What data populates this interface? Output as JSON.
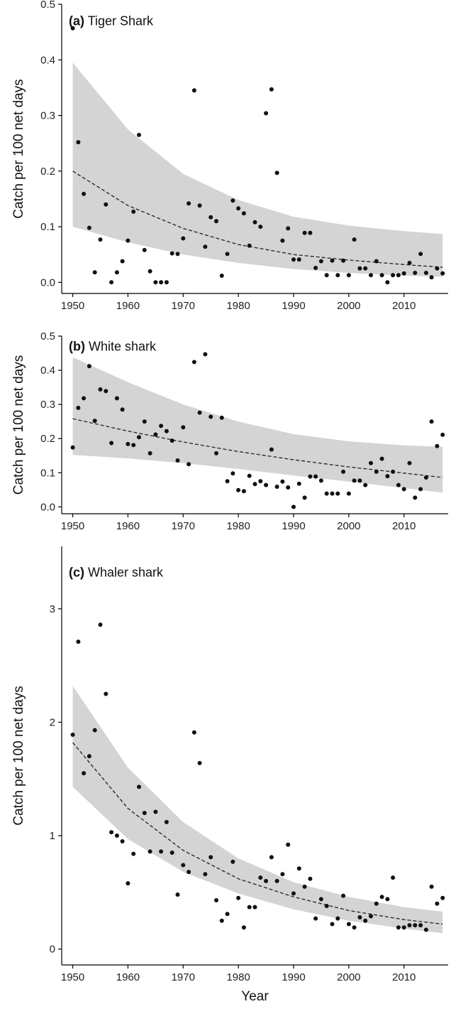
{
  "chart_data": [
    {
      "type": "scatter",
      "panel_letter": "(a)",
      "title": "Tiger Shark",
      "ylabel": "Catch per 100 net days",
      "xlabel": "",
      "xlim": [
        1948,
        2018
      ],
      "ylim": [
        -0.02,
        0.5
      ],
      "xticks": [
        1950,
        1960,
        1970,
        1980,
        1990,
        2000,
        2010
      ],
      "yticks": [
        0.0,
        0.1,
        0.2,
        0.3,
        0.4,
        0.5
      ],
      "ytick_labels": [
        "0.0",
        "0.1",
        "0.2",
        "0.3",
        "0.4",
        "0.5"
      ],
      "grid": false,
      "trend": {
        "x": [
          1950,
          1960,
          1970,
          1980,
          1990,
          2000,
          2010,
          2017
        ],
        "y": [
          0.2,
          0.138,
          0.097,
          0.068,
          0.05,
          0.04,
          0.032,
          0.027
        ]
      },
      "ribbon_upper": {
        "x": [
          1950,
          1960,
          1970,
          1980,
          1990,
          2000,
          2010,
          2017
        ],
        "y": [
          0.395,
          0.275,
          0.195,
          0.148,
          0.118,
          0.102,
          0.092,
          0.087
        ]
      },
      "ribbon_lower": {
        "x": [
          1950,
          1960,
          1970,
          1980,
          1990,
          2000,
          2010,
          2017
        ],
        "y": [
          0.1,
          0.072,
          0.05,
          0.035,
          0.024,
          0.017,
          0.012,
          0.01
        ]
      },
      "points": {
        "x": [
          1950,
          1951,
          1952,
          1953,
          1954,
          1955,
          1956,
          1957,
          1958,
          1959,
          1960,
          1961,
          1962,
          1963,
          1964,
          1965,
          1966,
          1967,
          1968,
          1969,
          1970,
          1971,
          1972,
          1973,
          1974,
          1975,
          1976,
          1977,
          1978,
          1979,
          1980,
          1981,
          1982,
          1983,
          1984,
          1985,
          1986,
          1987,
          1988,
          1989,
          1990,
          1991,
          1992,
          1993,
          1994,
          1995,
          1996,
          1997,
          1998,
          1999,
          2000,
          2001,
          2002,
          2003,
          2004,
          2005,
          2006,
          2007,
          2008,
          2009,
          2010,
          2011,
          2012,
          2013,
          2014,
          2015,
          2016,
          2017
        ],
        "y": [
          0.457,
          0.252,
          0.159,
          0.098,
          0.018,
          0.077,
          0.14,
          0.0,
          0.018,
          0.038,
          0.075,
          0.127,
          0.265,
          0.058,
          0.02,
          0.0,
          0.0,
          0.0,
          0.052,
          0.051,
          0.079,
          0.142,
          0.345,
          0.138,
          0.064,
          0.117,
          0.11,
          0.012,
          0.051,
          0.147,
          0.133,
          0.124,
          0.066,
          0.108,
          0.1,
          0.304,
          0.347,
          0.197,
          0.075,
          0.097,
          0.041,
          0.041,
          0.089,
          0.089,
          0.026,
          0.038,
          0.013,
          0.039,
          0.013,
          0.039,
          0.013,
          0.077,
          0.025,
          0.025,
          0.013,
          0.038,
          0.013,
          0.0,
          0.013,
          0.013,
          0.016,
          0.035,
          0.017,
          0.051,
          0.017,
          0.009,
          0.025,
          0.016
        ]
      }
    },
    {
      "type": "scatter",
      "panel_letter": "(b)",
      "title": "White shark",
      "ylabel": "Catch per 100 net days",
      "xlabel": "",
      "xlim": [
        1948,
        2018
      ],
      "ylim": [
        -0.02,
        0.5
      ],
      "xticks": [
        1950,
        1960,
        1970,
        1980,
        1990,
        2000,
        2010
      ],
      "yticks": [
        0.0,
        0.1,
        0.2,
        0.3,
        0.4,
        0.5
      ],
      "ytick_labels": [
        "0.0",
        "0.1",
        "0.2",
        "0.3",
        "0.4",
        "0.5"
      ],
      "grid": false,
      "trend": {
        "x": [
          1950,
          1960,
          1970,
          1980,
          1990,
          2000,
          2010,
          2017
        ],
        "y": [
          0.258,
          0.222,
          0.19,
          0.162,
          0.138,
          0.117,
          0.099,
          0.086
        ]
      },
      "ribbon_upper": {
        "x": [
          1950,
          1960,
          1970,
          1980,
          1990,
          2000,
          2010,
          2017
        ],
        "y": [
          0.438,
          0.365,
          0.3,
          0.25,
          0.213,
          0.192,
          0.18,
          0.176
        ]
      },
      "ribbon_lower": {
        "x": [
          1950,
          1960,
          1970,
          1980,
          1990,
          2000,
          2010,
          2017
        ],
        "y": [
          0.152,
          0.142,
          0.128,
          0.111,
          0.092,
          0.074,
          0.055,
          0.042
        ]
      },
      "points": {
        "x": [
          1950,
          1951,
          1952,
          1953,
          1954,
          1955,
          1956,
          1957,
          1958,
          1959,
          1960,
          1961,
          1962,
          1963,
          1964,
          1965,
          1966,
          1967,
          1968,
          1969,
          1970,
          1971,
          1972,
          1973,
          1974,
          1975,
          1976,
          1977,
          1978,
          1979,
          1980,
          1981,
          1982,
          1983,
          1984,
          1985,
          1986,
          1987,
          1988,
          1989,
          1990,
          1991,
          1992,
          1993,
          1994,
          1995,
          1996,
          1997,
          1998,
          1999,
          2000,
          2001,
          2002,
          2003,
          2004,
          2005,
          2006,
          2007,
          2008,
          2009,
          2010,
          2011,
          2012,
          2013,
          2014,
          2015,
          2016,
          2017
        ],
        "y": [
          0.174,
          0.29,
          0.318,
          0.412,
          0.252,
          0.344,
          0.339,
          0.187,
          0.318,
          0.285,
          0.184,
          0.181,
          0.204,
          0.25,
          0.157,
          0.212,
          0.237,
          0.222,
          0.194,
          0.136,
          0.233,
          0.125,
          0.424,
          0.276,
          0.447,
          0.264,
          0.157,
          0.261,
          0.075,
          0.098,
          0.049,
          0.046,
          0.091,
          0.067,
          0.075,
          0.064,
          0.168,
          0.059,
          0.074,
          0.057,
          0.0,
          0.068,
          0.027,
          0.089,
          0.089,
          0.077,
          0.039,
          0.039,
          0.039,
          0.103,
          0.039,
          0.077,
          0.077,
          0.064,
          0.128,
          0.103,
          0.141,
          0.09,
          0.103,
          0.064,
          0.052,
          0.128,
          0.027,
          0.052,
          0.086,
          0.25,
          0.178,
          0.211
        ]
      }
    },
    {
      "type": "scatter",
      "panel_letter": "(c)",
      "title": "Whaler shark",
      "ylabel": "Catch per 100 net days",
      "xlabel": "Year",
      "xlim": [
        1948,
        2018
      ],
      "ylim": [
        -0.14,
        3.55
      ],
      "xticks": [
        1950,
        1960,
        1970,
        1980,
        1990,
        2000,
        2010
      ],
      "yticks": [
        0,
        1,
        2,
        3
      ],
      "ytick_labels": [
        "0",
        "1",
        "2",
        "3"
      ],
      "grid": false,
      "trend": {
        "x": [
          1950,
          1960,
          1970,
          1980,
          1990,
          2000,
          2010,
          2017
        ],
        "y": [
          1.82,
          1.24,
          0.87,
          0.62,
          0.46,
          0.34,
          0.26,
          0.22
        ]
      },
      "ribbon_upper": {
        "x": [
          1950,
          1960,
          1970,
          1980,
          1990,
          2000,
          2010,
          2017
        ],
        "y": [
          2.32,
          1.6,
          1.12,
          0.8,
          0.59,
          0.46,
          0.37,
          0.33
        ]
      },
      "ribbon_lower": {
        "x": [
          1950,
          1960,
          1970,
          1980,
          1990,
          2000,
          2010,
          2017
        ],
        "y": [
          1.43,
          0.97,
          0.68,
          0.49,
          0.35,
          0.25,
          0.18,
          0.14
        ]
      },
      "points": {
        "x": [
          1950,
          1951,
          1952,
          1953,
          1954,
          1955,
          1956,
          1957,
          1958,
          1959,
          1960,
          1961,
          1962,
          1963,
          1964,
          1965,
          1966,
          1967,
          1968,
          1969,
          1970,
          1971,
          1972,
          1973,
          1974,
          1975,
          1976,
          1977,
          1978,
          1979,
          1980,
          1981,
          1982,
          1983,
          1984,
          1985,
          1986,
          1987,
          1988,
          1989,
          1990,
          1991,
          1992,
          1993,
          1994,
          1995,
          1996,
          1997,
          1998,
          1999,
          2000,
          2001,
          2002,
          2003,
          2004,
          2005,
          2006,
          2007,
          2008,
          2009,
          2010,
          2011,
          2012,
          2013,
          2014,
          2015,
          2016,
          2017
        ],
        "y": [
          1.89,
          2.71,
          1.55,
          1.7,
          1.93,
          2.86,
          2.25,
          1.03,
          1.0,
          0.95,
          0.58,
          0.84,
          1.43,
          1.2,
          0.86,
          1.21,
          0.86,
          1.12,
          0.85,
          0.48,
          0.74,
          0.68,
          1.91,
          1.64,
          0.66,
          0.81,
          0.43,
          0.25,
          0.31,
          0.77,
          0.45,
          0.19,
          0.37,
          0.37,
          0.63,
          0.6,
          0.81,
          0.6,
          0.66,
          0.92,
          0.49,
          0.71,
          0.55,
          0.62,
          0.27,
          0.44,
          0.38,
          0.22,
          0.27,
          0.47,
          0.22,
          0.19,
          0.28,
          0.25,
          0.29,
          0.4,
          0.46,
          0.44,
          0.63,
          0.19,
          0.19,
          0.21,
          0.21,
          0.21,
          0.17,
          0.55,
          0.4,
          0.45
        ]
      }
    }
  ]
}
